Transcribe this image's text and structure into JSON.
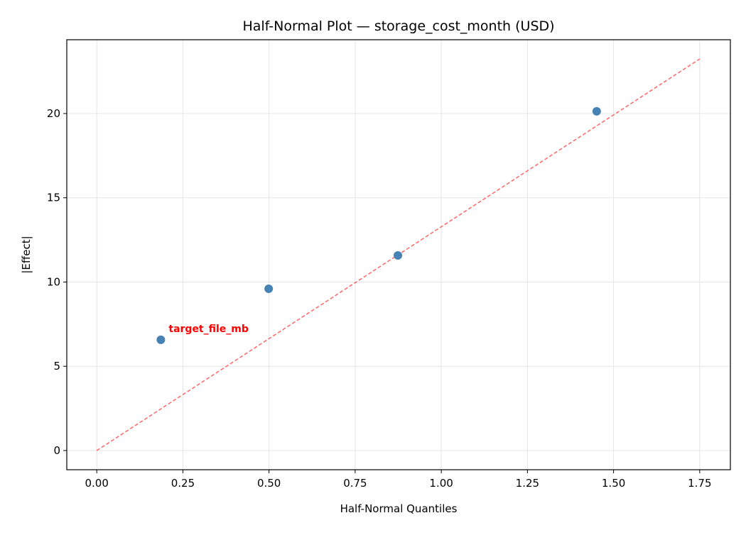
{
  "chart_data": {
    "type": "scatter",
    "title": "Half-Normal Plot — storage_cost_month (USD)",
    "xlabel": "Half-Normal Quantiles",
    "ylabel": "|Effect|",
    "xlim": [
      -0.087,
      1.839
    ],
    "ylim": [
      -1.14,
      24.38
    ],
    "grid": true,
    "xticks": [
      0.0,
      0.25,
      0.5,
      0.75,
      1.0,
      1.25,
      1.5,
      1.75
    ],
    "xtick_labels": [
      "0.00",
      "0.25",
      "0.50",
      "0.75",
      "1.00",
      "1.25",
      "1.50",
      "1.75"
    ],
    "yticks": [
      0,
      5,
      10,
      15,
      20
    ],
    "ytick_labels": [
      "0",
      "5",
      "10",
      "15",
      "20"
    ],
    "points": [
      {
        "x": 0.186,
        "y": 6.57
      },
      {
        "x": 0.499,
        "y": 9.6
      },
      {
        "x": 0.874,
        "y": 11.58
      },
      {
        "x": 1.451,
        "y": 20.13
      }
    ],
    "reference_line": {
      "x": [
        0,
        1.75
      ],
      "y": [
        0,
        23.24
      ],
      "style": "dashed",
      "color": "#ff6666"
    },
    "annotations": [
      {
        "text": "target_file_mb",
        "point_index": 0,
        "color": "#ff0000"
      }
    ],
    "point_color": "#4682b4"
  }
}
